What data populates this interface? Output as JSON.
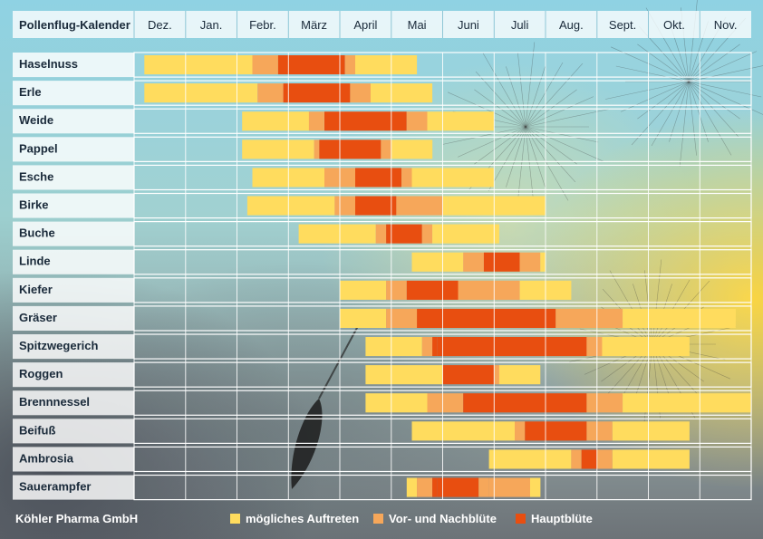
{
  "chart_data": {
    "type": "table",
    "title": "Pollenflug-Kalender",
    "months": [
      "Dez.",
      "Jan.",
      "Febr.",
      "März",
      "April",
      "Mai",
      "Juni",
      "Juli",
      "Aug.",
      "Sept.",
      "Okt.",
      "Nov."
    ],
    "legend": [
      {
        "key": "possible",
        "label": "mögliches Auftreten",
        "color": "#ffdc5e"
      },
      {
        "key": "prepost",
        "label": "Vor- und Nachblüte",
        "color": "#f6a75a"
      },
      {
        "key": "main",
        "label": "Hauptblüte",
        "color": "#e84e10"
      }
    ],
    "rows": [
      {
        "name": "Haselnuss",
        "segments": [
          [
            0.2,
            2.3,
            "possible"
          ],
          [
            2.3,
            2.8,
            "prepost"
          ],
          [
            2.8,
            4.1,
            "main"
          ],
          [
            4.1,
            4.3,
            "prepost"
          ],
          [
            4.3,
            5.5,
            "possible"
          ]
        ]
      },
      {
        "name": "Erle",
        "segments": [
          [
            0.2,
            2.4,
            "possible"
          ],
          [
            2.4,
            2.9,
            "prepost"
          ],
          [
            2.9,
            4.2,
            "main"
          ],
          [
            4.2,
            4.6,
            "prepost"
          ],
          [
            4.6,
            5.8,
            "possible"
          ]
        ]
      },
      {
        "name": "Weide",
        "segments": [
          [
            2.1,
            3.4,
            "possible"
          ],
          [
            3.4,
            3.7,
            "prepost"
          ],
          [
            3.7,
            5.3,
            "main"
          ],
          [
            5.3,
            5.7,
            "prepost"
          ],
          [
            5.7,
            7.0,
            "possible"
          ]
        ]
      },
      {
        "name": "Pappel",
        "segments": [
          [
            2.1,
            3.5,
            "possible"
          ],
          [
            3.5,
            3.6,
            "prepost"
          ],
          [
            3.6,
            4.8,
            "main"
          ],
          [
            4.8,
            5.0,
            "prepost"
          ],
          [
            5.0,
            5.8,
            "possible"
          ]
        ]
      },
      {
        "name": "Esche",
        "segments": [
          [
            2.3,
            3.7,
            "possible"
          ],
          [
            3.7,
            4.3,
            "prepost"
          ],
          [
            4.3,
            5.2,
            "main"
          ],
          [
            5.2,
            5.4,
            "prepost"
          ],
          [
            5.4,
            7.0,
            "possible"
          ]
        ]
      },
      {
        "name": "Birke",
        "segments": [
          [
            2.2,
            3.9,
            "possible"
          ],
          [
            3.9,
            4.0,
            "prepost"
          ],
          [
            4.0,
            4.3,
            "prepost"
          ],
          [
            4.3,
            5.1,
            "main"
          ],
          [
            5.1,
            6.0,
            "prepost"
          ],
          [
            6.0,
            6.1,
            "possible"
          ],
          [
            6.1,
            8.0,
            "possible"
          ]
        ]
      },
      {
        "name": "Buche",
        "segments": [
          [
            3.2,
            4.7,
            "possible"
          ],
          [
            4.7,
            4.9,
            "prepost"
          ],
          [
            4.9,
            5.0,
            "main"
          ],
          [
            5.0,
            5.6,
            "main"
          ],
          [
            5.6,
            5.8,
            "prepost"
          ],
          [
            5.8,
            7.1,
            "possible"
          ]
        ]
      },
      {
        "name": "Linde",
        "segments": [
          [
            5.4,
            6.4,
            "possible"
          ],
          [
            6.4,
            6.8,
            "prepost"
          ],
          [
            6.8,
            7.0,
            "main"
          ],
          [
            7.0,
            7.5,
            "main"
          ],
          [
            7.5,
            7.9,
            "prepost"
          ],
          [
            7.9,
            8.0,
            "possible"
          ]
        ]
      },
      {
        "name": "Kiefer",
        "segments": [
          [
            4.0,
            4.9,
            "possible"
          ],
          [
            4.9,
            5.3,
            "prepost"
          ],
          [
            5.3,
            6.3,
            "main"
          ],
          [
            6.3,
            7.5,
            "prepost"
          ],
          [
            7.5,
            8.5,
            "possible"
          ]
        ]
      },
      {
        "name": "Gräser",
        "segments": [
          [
            4.0,
            4.9,
            "possible"
          ],
          [
            4.9,
            5.0,
            "prepost"
          ],
          [
            5.0,
            5.5,
            "prepost"
          ],
          [
            5.5,
            8.2,
            "main"
          ],
          [
            8.2,
            9.5,
            "prepost"
          ],
          [
            9.5,
            11.7,
            "possible"
          ]
        ]
      },
      {
        "name": "Spitzwegerich",
        "segments": [
          [
            4.5,
            5.6,
            "possible"
          ],
          [
            5.6,
            5.8,
            "prepost"
          ],
          [
            5.8,
            5.9,
            "main"
          ],
          [
            5.9,
            8.8,
            "main"
          ],
          [
            8.8,
            9.0,
            "prepost"
          ],
          [
            9.0,
            9.1,
            "prepost"
          ],
          [
            9.1,
            10.8,
            "possible"
          ]
        ]
      },
      {
        "name": "Roggen",
        "segments": [
          [
            4.5,
            6.0,
            "possible"
          ],
          [
            6.0,
            7.0,
            "main"
          ],
          [
            7.0,
            7.1,
            "prepost"
          ],
          [
            7.1,
            7.9,
            "possible"
          ]
        ]
      },
      {
        "name": "Brennnessel",
        "segments": [
          [
            4.5,
            5.7,
            "possible"
          ],
          [
            5.7,
            6.0,
            "prepost"
          ],
          [
            6.0,
            6.4,
            "prepost"
          ],
          [
            6.4,
            8.8,
            "main"
          ],
          [
            8.8,
            9.5,
            "prepost"
          ],
          [
            9.5,
            12.0,
            "possible"
          ]
        ]
      },
      {
        "name": "Beifuß",
        "segments": [
          [
            5.4,
            7.4,
            "possible"
          ],
          [
            7.4,
            7.6,
            "prepost"
          ],
          [
            7.6,
            8.8,
            "main"
          ],
          [
            8.8,
            9.3,
            "prepost"
          ],
          [
            9.3,
            10.8,
            "possible"
          ]
        ]
      },
      {
        "name": "Ambrosia",
        "segments": [
          [
            6.9,
            8.5,
            "possible"
          ],
          [
            8.5,
            8.7,
            "prepost"
          ],
          [
            8.7,
            9.0,
            "main"
          ],
          [
            9.0,
            9.3,
            "prepost"
          ],
          [
            9.3,
            10.8,
            "possible"
          ]
        ]
      },
      {
        "name": "Sauerampfer",
        "segments": [
          [
            5.3,
            5.5,
            "possible"
          ],
          [
            5.5,
            5.8,
            "prepost"
          ],
          [
            5.8,
            5.9,
            "main"
          ],
          [
            5.9,
            6.7,
            "main"
          ],
          [
            6.7,
            6.9,
            "prepost"
          ],
          [
            6.9,
            7.7,
            "prepost"
          ],
          [
            7.7,
            7.9,
            "possible"
          ]
        ]
      }
    ]
  },
  "footer": {
    "brand": "Köhler Pharma GmbH"
  }
}
